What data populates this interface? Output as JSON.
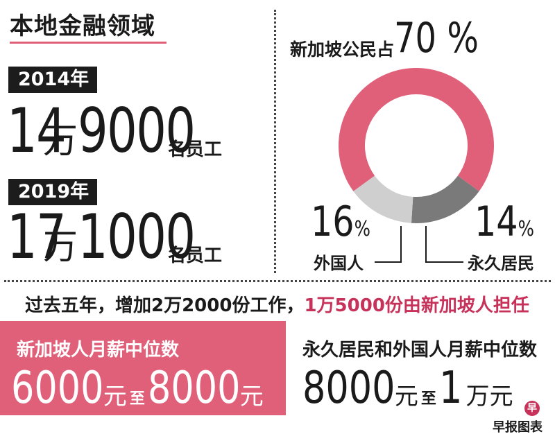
{
  "colors": {
    "accent": "#e0607a",
    "accent_text": "#c7325a",
    "dark": "#1c1c1c",
    "gray": "#7a7a7a",
    "light_gray": "#cfcfcf"
  },
  "title": "本地金融领域",
  "employment": [
    {
      "year": "2014年",
      "num1": "14",
      "wan": "万",
      "num2": "9000",
      "unit": "名员工"
    },
    {
      "year": "2019年",
      "num1": "17",
      "wan": "万",
      "num2": "1000",
      "unit": "名员工"
    }
  ],
  "share": {
    "label": "新加坡公民占",
    "pct": "70 %"
  },
  "segments": {
    "foreigners": {
      "pct": "16",
      "sign": "%",
      "label": "外国人"
    },
    "pr": {
      "pct": "14",
      "sign": "%",
      "label": "永久居民"
    }
  },
  "sentence": {
    "normal": "过去五年，增加2万2000份工作，",
    "highlight": "1万5000份由新加坡人担任"
  },
  "salary": {
    "sg": {
      "title": "新加坡人月薪中位数",
      "num1": "6000",
      "unit1": "元",
      "to": "至",
      "num2": "8000",
      "unit2": "元"
    },
    "others": {
      "title": "永久居民和外国人月薪中位数",
      "num1": "8000",
      "unit1": "元",
      "to": "至",
      "num2": "1",
      "unit2": "万元"
    }
  },
  "logo_text": "早",
  "source": "早报图表",
  "chart_data": {
    "type": "pie",
    "categories": [
      "新加坡公民",
      "外国人",
      "永久居民"
    ],
    "values": [
      70,
      16,
      14
    ],
    "colors": [
      "#e0607a",
      "#7a7a7a",
      "#cfcfcf"
    ]
  }
}
